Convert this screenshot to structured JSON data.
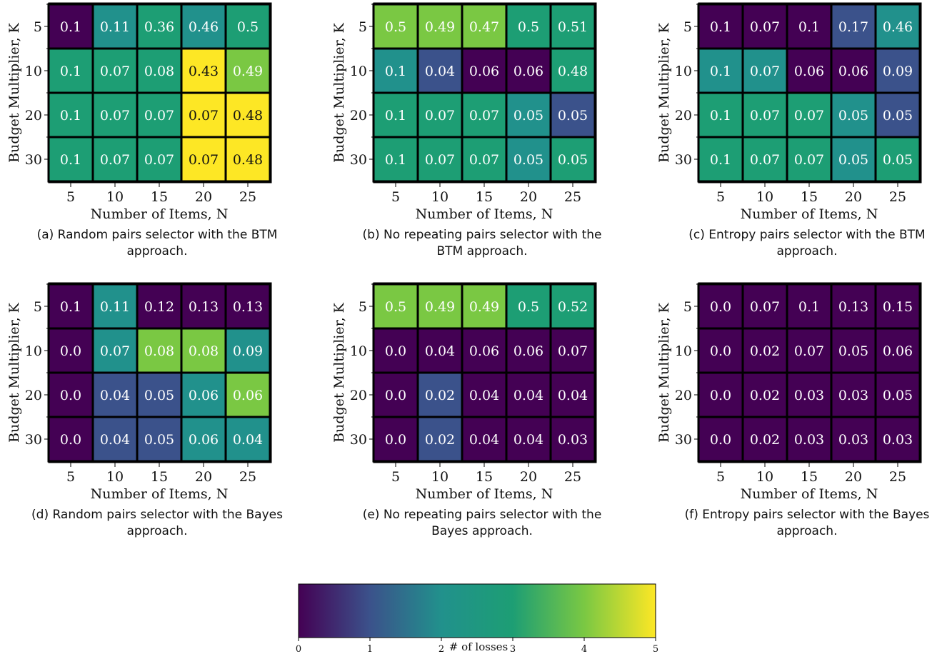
{
  "chart_data": [
    {
      "type": "heatmap",
      "panel_id": "a",
      "caption": "(a) Random pairs selector with the BTM approach.",
      "caption_lines": [
        "(a) Random pairs selector with the BTM",
        "approach."
      ],
      "xlabel": "Number of Items, N",
      "ylabel": "Budget Multiplier, K",
      "x_ticks": [
        "5",
        "10",
        "15",
        "20",
        "25"
      ],
      "y_ticks": [
        "5",
        "10",
        "20",
        "30"
      ],
      "cell_text": [
        [
          "0.1",
          "0.11",
          "0.36",
          "0.46",
          "0.5"
        ],
        [
          "0.1",
          "0.07",
          "0.08",
          "0.43",
          "0.49"
        ],
        [
          "0.1",
          "0.07",
          "0.07",
          "0.07",
          "0.48"
        ],
        [
          "0.1",
          "0.07",
          "0.07",
          "0.07",
          "0.48"
        ]
      ],
      "losses": [
        [
          0,
          2,
          3,
          2,
          3
        ],
        [
          3,
          3,
          3,
          5,
          4
        ],
        [
          3,
          3,
          3,
          5,
          5
        ],
        [
          3,
          3,
          3,
          5,
          5
        ]
      ]
    },
    {
      "type": "heatmap",
      "panel_id": "b",
      "caption": "(b) No repeating pairs selector with the BTM approach.",
      "caption_lines": [
        "(b) No repeating pairs selector with the",
        "BTM approach."
      ],
      "xlabel": "Number of Items, N",
      "ylabel": "Budget Multiplier, K",
      "x_ticks": [
        "5",
        "10",
        "15",
        "20",
        "25"
      ],
      "y_ticks": [
        "5",
        "10",
        "20",
        "30"
      ],
      "cell_text": [
        [
          "0.5",
          "0.49",
          "0.47",
          "0.5",
          "0.51"
        ],
        [
          "0.1",
          "0.04",
          "0.06",
          "0.06",
          "0.48"
        ],
        [
          "0.1",
          "0.07",
          "0.07",
          "0.05",
          "0.05"
        ],
        [
          "0.1",
          "0.07",
          "0.07",
          "0.05",
          "0.05"
        ]
      ],
      "losses": [
        [
          4,
          4,
          4,
          3,
          3
        ],
        [
          2,
          1,
          0,
          0,
          3
        ],
        [
          3,
          3,
          3,
          2,
          1
        ],
        [
          3,
          3,
          3,
          2,
          3
        ]
      ]
    },
    {
      "type": "heatmap",
      "panel_id": "c",
      "caption": "(c) Entropy pairs selector with the BTM approach.",
      "caption_lines": [
        "(c) Entropy pairs selector with the BTM",
        "approach."
      ],
      "xlabel": "Number of Items, N",
      "ylabel": "Budget Multiplier, K",
      "x_ticks": [
        "5",
        "10",
        "15",
        "20",
        "25"
      ],
      "y_ticks": [
        "5",
        "10",
        "20",
        "30"
      ],
      "cell_text": [
        [
          "0.1",
          "0.07",
          "0.1",
          "0.17",
          "0.46"
        ],
        [
          "0.1",
          "0.07",
          "0.06",
          "0.06",
          "0.09"
        ],
        [
          "0.1",
          "0.07",
          "0.07",
          "0.05",
          "0.05"
        ],
        [
          "0.1",
          "0.07",
          "0.07",
          "0.05",
          "0.05"
        ]
      ],
      "losses": [
        [
          0,
          0,
          0,
          1,
          2
        ],
        [
          2,
          2,
          0,
          0,
          1
        ],
        [
          3,
          3,
          3,
          2,
          1
        ],
        [
          3,
          3,
          3,
          2,
          3
        ]
      ]
    },
    {
      "type": "heatmap",
      "panel_id": "d",
      "caption": "(d) Random pairs selector with the Bayes approach.",
      "caption_lines": [
        "(d) Random pairs selector with the Bayes",
        "approach."
      ],
      "xlabel": "Number of Items, N",
      "ylabel": "Budget Multiplier, K",
      "x_ticks": [
        "5",
        "10",
        "15",
        "20",
        "25"
      ],
      "y_ticks": [
        "5",
        "10",
        "20",
        "30"
      ],
      "cell_text": [
        [
          "0.1",
          "0.11",
          "0.12",
          "0.13",
          "0.13"
        ],
        [
          "0.0",
          "0.07",
          "0.08",
          "0.08",
          "0.09"
        ],
        [
          "0.0",
          "0.04",
          "0.05",
          "0.06",
          "0.06"
        ],
        [
          "0.0",
          "0.04",
          "0.05",
          "0.06",
          "0.04"
        ]
      ],
      "losses": [
        [
          0,
          2,
          0,
          0,
          0
        ],
        [
          0,
          2,
          4,
          4,
          2
        ],
        [
          0,
          1,
          1,
          2,
          4
        ],
        [
          0,
          1,
          1,
          2,
          2
        ]
      ]
    },
    {
      "type": "heatmap",
      "panel_id": "e",
      "caption": "(e) No repeating pairs selector with the Bayes approach.",
      "caption_lines": [
        "(e) No repeating pairs selector with the",
        "Bayes approach."
      ],
      "xlabel": "Number of Items, N",
      "ylabel": "Budget Multiplier, K",
      "x_ticks": [
        "5",
        "10",
        "15",
        "20",
        "25"
      ],
      "y_ticks": [
        "5",
        "10",
        "20",
        "30"
      ],
      "cell_text": [
        [
          "0.5",
          "0.49",
          "0.49",
          "0.5",
          "0.52"
        ],
        [
          "0.0",
          "0.04",
          "0.06",
          "0.06",
          "0.07"
        ],
        [
          "0.0",
          "0.02",
          "0.04",
          "0.04",
          "0.04"
        ],
        [
          "0.0",
          "0.02",
          "0.04",
          "0.04",
          "0.03"
        ]
      ],
      "losses": [
        [
          4,
          4,
          4,
          3,
          3
        ],
        [
          0,
          0,
          0,
          0,
          0
        ],
        [
          0,
          1,
          0,
          0,
          0
        ],
        [
          0,
          1,
          0,
          0,
          0
        ]
      ]
    },
    {
      "type": "heatmap",
      "panel_id": "f",
      "caption": "(f) Entropy pairs selector with the Bayes approach.",
      "caption_lines": [
        "(f) Entropy pairs selector with the Bayes",
        "approach."
      ],
      "xlabel": "Number of Items, N",
      "ylabel": "Budget Multiplier, K",
      "x_ticks": [
        "5",
        "10",
        "15",
        "20",
        "25"
      ],
      "y_ticks": [
        "5",
        "10",
        "20",
        "30"
      ],
      "cell_text": [
        [
          "0.0",
          "0.07",
          "0.1",
          "0.13",
          "0.15"
        ],
        [
          "0.0",
          "0.02",
          "0.07",
          "0.05",
          "0.06"
        ],
        [
          "0.0",
          "0.02",
          "0.03",
          "0.03",
          "0.05"
        ],
        [
          "0.0",
          "0.02",
          "0.03",
          "0.03",
          "0.03"
        ]
      ],
      "losses": [
        [
          0,
          0,
          0,
          0,
          0
        ],
        [
          0,
          0,
          0,
          0,
          0
        ],
        [
          0,
          0,
          0,
          0,
          0
        ],
        [
          0,
          0,
          0,
          0,
          0
        ]
      ]
    }
  ],
  "colorbar": {
    "label": "# of losses",
    "ticks": [
      "0",
      "1",
      "2",
      "3",
      "4",
      "5"
    ],
    "range": [
      0,
      5
    ],
    "colormap": "viridis-like",
    "colors": [
      "#440154",
      "#3b528b",
      "#21918c",
      "#1d9e74",
      "#7ac843",
      "#fde725"
    ]
  }
}
